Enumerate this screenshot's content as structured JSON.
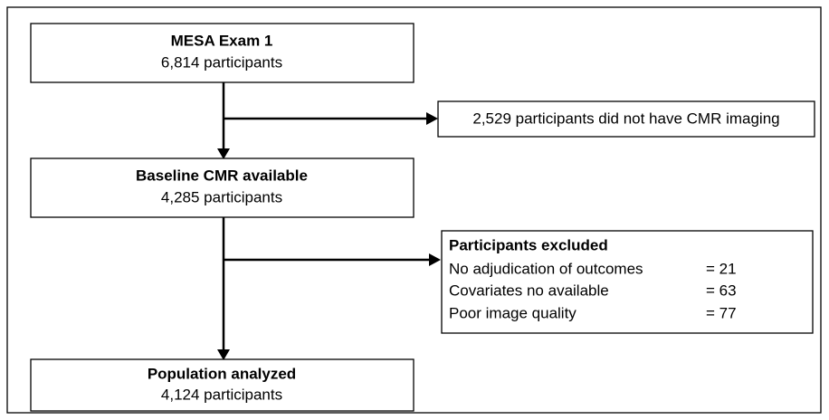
{
  "nodes": [
    {
      "title": "MESA Exam 1",
      "subtitle": "6,814 participants"
    },
    {
      "title": "Baseline CMR available",
      "subtitle": "4,285 participants"
    },
    {
      "title": "Population analyzed",
      "subtitle": "4,124 participants"
    }
  ],
  "side_boxes": [
    {
      "text": "2,529 participants did not have CMR imaging"
    },
    {
      "title": "Participants excluded",
      "items": [
        {
          "label": "No adjudication of outcomes",
          "value": "= 21"
        },
        {
          "label": "Covariates no available",
          "value": "= 63"
        },
        {
          "label": "Poor image quality",
          "value": "= 77"
        }
      ]
    }
  ]
}
